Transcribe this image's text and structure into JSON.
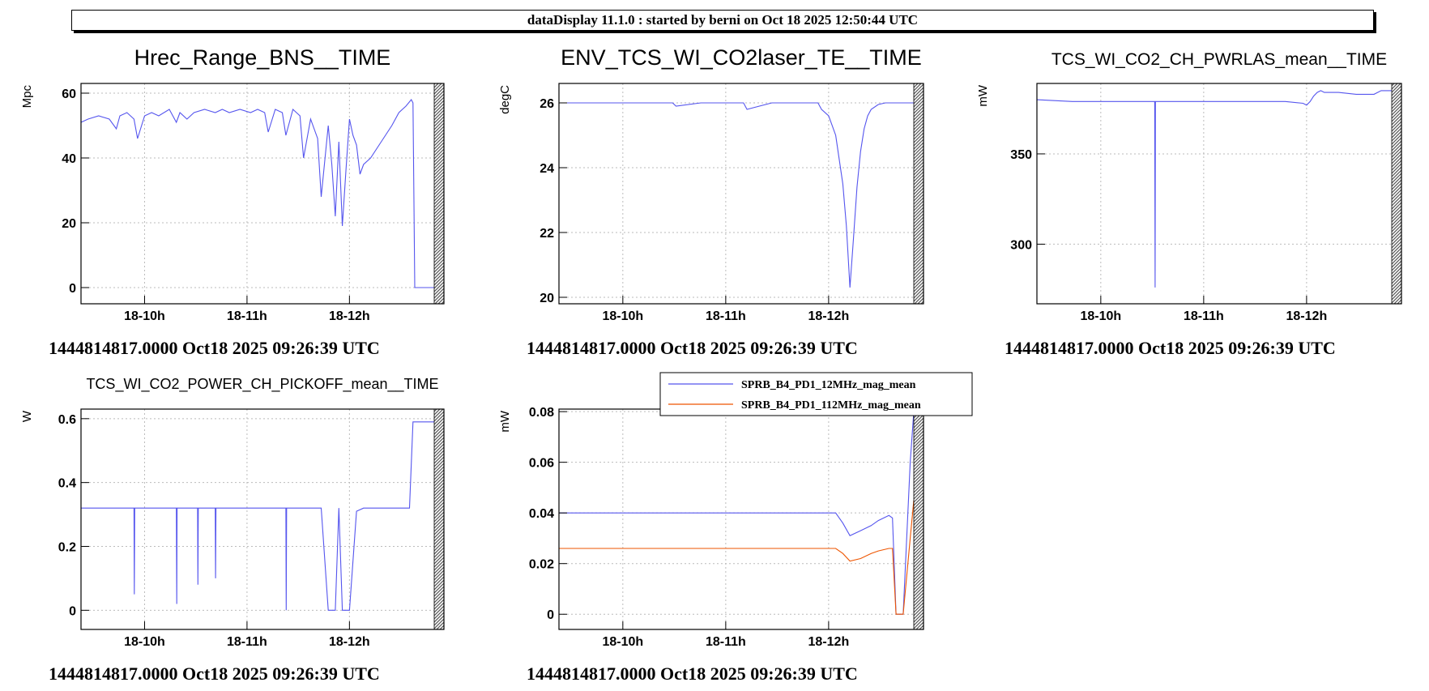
{
  "banner": "dataDisplay 11.1.0 : started by berni on Oct 18 2025 12:50:44 UTC",
  "colors": {
    "blue": "#5555ee",
    "orange": "#ee5500",
    "grid": "#bbbbbb",
    "hatch": "#555555"
  },
  "chart_data": [
    {
      "type": "line",
      "title": "Hrec_Range_BNS__TIME",
      "ylabel": "Mpc",
      "x_ticks": [
        "18-10h",
        "18-11h",
        "18-12h"
      ],
      "y_ticks": [
        0,
        20,
        40,
        60
      ],
      "ylim": [
        -5,
        63
      ],
      "timestamp": "1444814817.0000 Oct18 2025 09:26:39 UTC",
      "series": [
        {
          "color": "#5555ee",
          "x": [
            0,
            0.02,
            0.05,
            0.08,
            0.1,
            0.11,
            0.13,
            0.15,
            0.16,
            0.18,
            0.2,
            0.22,
            0.25,
            0.27,
            0.28,
            0.3,
            0.32,
            0.35,
            0.38,
            0.4,
            0.42,
            0.45,
            0.48,
            0.5,
            0.52,
            0.53,
            0.55,
            0.57,
            0.58,
            0.6,
            0.62,
            0.63,
            0.65,
            0.67,
            0.68,
            0.7,
            0.71,
            0.72,
            0.73,
            0.74,
            0.75,
            0.76,
            0.77,
            0.78,
            0.79,
            0.8,
            0.82,
            0.85,
            0.88,
            0.9,
            0.92,
            0.935,
            0.94,
            0.945,
            1.0
          ],
          "values": [
            51,
            52,
            53,
            52,
            49,
            53,
            54,
            52,
            46,
            53,
            54,
            53,
            55,
            51,
            54,
            52,
            54,
            55,
            54,
            55,
            54,
            55,
            54,
            55,
            54,
            48,
            55,
            54,
            47,
            55,
            53,
            40,
            52,
            46,
            28,
            50,
            38,
            22,
            45,
            19,
            36,
            52,
            47,
            44,
            35,
            38,
            40,
            45,
            50,
            54,
            56,
            58,
            57,
            0,
            0
          ]
        }
      ]
    },
    {
      "type": "line",
      "title": "ENV_TCS_WI_CO2laser_TE__TIME",
      "ylabel": "degC",
      "x_ticks": [
        "18-10h",
        "18-11h",
        "18-12h"
      ],
      "y_ticks": [
        20,
        22,
        24,
        26
      ],
      "ylim": [
        19.8,
        26.6
      ],
      "timestamp": "1444814817.0000 Oct18 2025 09:26:39 UTC",
      "series": [
        {
          "color": "#5555ee",
          "x": [
            0,
            0.1,
            0.2,
            0.32,
            0.33,
            0.4,
            0.5,
            0.52,
            0.53,
            0.6,
            0.7,
            0.73,
            0.74,
            0.76,
            0.78,
            0.8,
            0.81,
            0.82,
            0.83,
            0.84,
            0.85,
            0.86,
            0.87,
            0.88,
            0.9,
            0.92,
            0.95,
            1.0
          ],
          "values": [
            26.0,
            26.0,
            26.0,
            26.0,
            25.9,
            26.0,
            26.0,
            26.0,
            25.8,
            26.0,
            26.0,
            26.0,
            25.8,
            25.6,
            25.0,
            23.5,
            22.2,
            20.3,
            21.8,
            23.4,
            24.5,
            25.2,
            25.6,
            25.8,
            25.95,
            26.0,
            26.0,
            26.0
          ]
        }
      ]
    },
    {
      "type": "line",
      "title": "TCS_WI_CO2_CH_PWRLAS_mean__TIME",
      "ylabel": "mW",
      "x_ticks": [
        "18-10h",
        "18-11h",
        "18-12h"
      ],
      "y_ticks": [
        300,
        350
      ],
      "ylim": [
        267,
        389
      ],
      "timestamp": "1444814817.0000 Oct18 2025 09:26:39 UTC",
      "series": [
        {
          "color": "#5555ee",
          "x": [
            0,
            0.1,
            0.2,
            0.3,
            0.332,
            0.333,
            0.334,
            0.4,
            0.5,
            0.6,
            0.7,
            0.75,
            0.76,
            0.77,
            0.78,
            0.79,
            0.8,
            0.81,
            0.85,
            0.9,
            0.95,
            0.97,
            1.0
          ],
          "values": [
            380,
            379,
            379,
            379,
            379,
            276,
            379,
            379,
            379,
            379,
            379,
            378,
            377,
            379,
            382,
            384,
            385,
            384,
            384,
            383,
            383,
            385,
            385
          ]
        }
      ]
    },
    {
      "type": "line",
      "title": "TCS_WI_CO2_POWER_CH_PICKOFF_mean__TIME",
      "ylabel": "W",
      "x_ticks": [
        "18-10h",
        "18-11h",
        "18-12h"
      ],
      "y_ticks": [
        0,
        0.2,
        0.4,
        0.6
      ],
      "ylim": [
        -0.06,
        0.63
      ],
      "timestamp": "1444814817.0000 Oct18 2025 09:26:39 UTC",
      "series": [
        {
          "color": "#5555ee",
          "x": [
            0,
            0.15,
            0.151,
            0.152,
            0.27,
            0.271,
            0.272,
            0.33,
            0.331,
            0.332,
            0.38,
            0.381,
            0.382,
            0.58,
            0.581,
            0.582,
            0.68,
            0.7,
            0.72,
            0.73,
            0.74,
            0.76,
            0.78,
            0.8,
            0.9,
            0.93,
            0.94,
            1.0
          ],
          "values": [
            0.32,
            0.32,
            0.05,
            0.32,
            0.32,
            0.02,
            0.32,
            0.32,
            0.08,
            0.32,
            0.32,
            0.1,
            0.32,
            0.32,
            0.0,
            0.32,
            0.32,
            0.0,
            0.0,
            0.32,
            0.0,
            0.0,
            0.31,
            0.32,
            0.32,
            0.32,
            0.59,
            0.59
          ]
        }
      ]
    },
    {
      "type": "line",
      "title": "",
      "ylabel": "mW",
      "x_ticks": [
        "18-10h",
        "18-11h",
        "18-12h"
      ],
      "y_ticks": [
        0,
        0.02,
        0.04,
        0.06,
        0.08
      ],
      "ylim": [
        -0.006,
        0.081
      ],
      "timestamp": "1444814817.0000 Oct18 2025 09:26:39 UTC",
      "legend": [
        "SPRB_B4_PD1_12MHz_mag_mean",
        "SPRB_B4_PD1_112MHz_mag_mean"
      ],
      "series": [
        {
          "name": "SPRB_B4_PD1_12MHz_mag_mean",
          "color": "#5555ee",
          "x": [
            0,
            0.1,
            0.2,
            0.3,
            0.4,
            0.5,
            0.6,
            0.7,
            0.75,
            0.78,
            0.8,
            0.82,
            0.85,
            0.88,
            0.9,
            0.93,
            0.94,
            0.95,
            0.96,
            0.97,
            0.99,
            1.0
          ],
          "values": [
            0.04,
            0.04,
            0.04,
            0.04,
            0.04,
            0.04,
            0.04,
            0.04,
            0.04,
            0.04,
            0.036,
            0.031,
            0.033,
            0.035,
            0.037,
            0.039,
            0.038,
            0.0,
            0.0,
            0.0,
            0.06,
            0.08
          ]
        },
        {
          "name": "SPRB_B4_PD1_112MHz_mag_mean",
          "color": "#ee5500",
          "x": [
            0,
            0.1,
            0.2,
            0.3,
            0.4,
            0.5,
            0.6,
            0.7,
            0.75,
            0.78,
            0.8,
            0.82,
            0.85,
            0.88,
            0.9,
            0.93,
            0.94,
            0.95,
            0.96,
            0.97,
            0.99,
            1.0
          ],
          "values": [
            0.026,
            0.026,
            0.026,
            0.026,
            0.026,
            0.026,
            0.026,
            0.026,
            0.026,
            0.026,
            0.024,
            0.021,
            0.022,
            0.024,
            0.025,
            0.026,
            0.026,
            0.0,
            0.0,
            0.0,
            0.03,
            0.045
          ]
        }
      ]
    }
  ]
}
